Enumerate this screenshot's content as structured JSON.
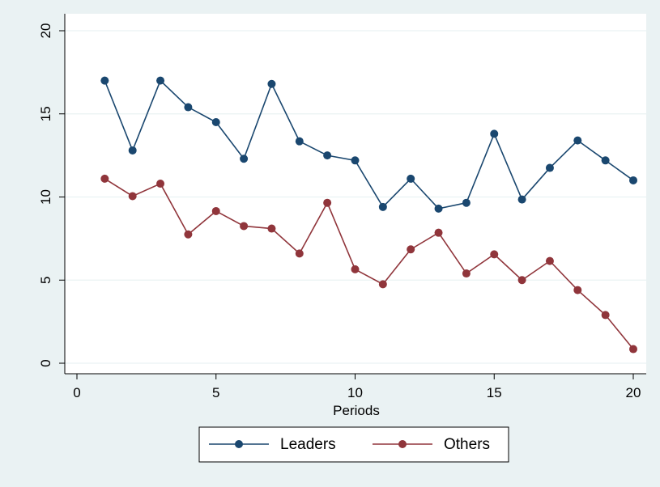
{
  "chart_data": {
    "type": "line",
    "title": "",
    "xlabel": "Periods",
    "ylabel": "",
    "xlim": [
      0,
      20
    ],
    "ylim": [
      0,
      20
    ],
    "x_ticks": [
      0,
      5,
      10,
      15,
      20
    ],
    "y_ticks": [
      0,
      5,
      10,
      15,
      20
    ],
    "grid": "horizontal",
    "legend_position": "bottom",
    "x": [
      1,
      2,
      3,
      4,
      5,
      6,
      7,
      8,
      9,
      10,
      11,
      12,
      13,
      14,
      15,
      16,
      17,
      18,
      19,
      20
    ],
    "series": [
      {
        "name": "Leaders",
        "color": "#1a476f",
        "values": [
          17.0,
          12.8,
          17.0,
          15.4,
          14.5,
          12.3,
          16.8,
          13.35,
          12.5,
          12.2,
          9.4,
          11.1,
          9.3,
          9.65,
          13.8,
          9.85,
          11.75,
          13.4,
          12.2,
          11.0
        ]
      },
      {
        "name": "Others",
        "color": "#90353b",
        "values": [
          11.1,
          10.05,
          10.8,
          7.75,
          9.15,
          8.25,
          8.1,
          6.6,
          9.65,
          5.65,
          4.75,
          6.85,
          7.85,
          5.4,
          6.55,
          5.0,
          6.15,
          4.4,
          2.9,
          0.85
        ]
      }
    ]
  }
}
